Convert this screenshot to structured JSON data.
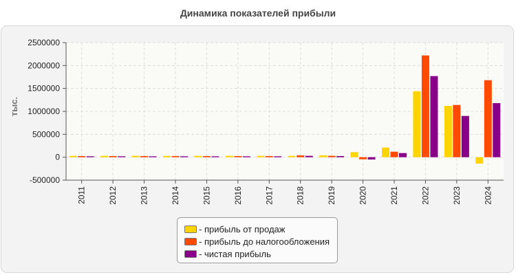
{
  "chart_data": {
    "type": "bar",
    "title": "Динамика показателей прибыли",
    "ylabel": "тыс.",
    "xlabel": "",
    "categories": [
      "2011",
      "2012",
      "2013",
      "2014",
      "2015",
      "2016",
      "2017",
      "2018",
      "2019",
      "2020",
      "2021",
      "2022",
      "2023",
      "2024"
    ],
    "ylim": [
      -500000,
      2500000
    ],
    "yticks": [
      2500000,
      2000000,
      1500000,
      1000000,
      500000,
      0,
      -500000
    ],
    "ytick_labels": [
      "2500000",
      "2000000",
      "1500000",
      "1000000",
      "500000",
      "0",
      "-500000"
    ],
    "grid": true,
    "legend_position": "bottom",
    "series": [
      {
        "name": "- прибыль от продаж",
        "color": "#ffd400",
        "values": [
          30000,
          30000,
          30000,
          30000,
          30000,
          30000,
          30000,
          30000,
          40000,
          110000,
          210000,
          1440000,
          1120000,
          -140000
        ]
      },
      {
        "name": "- прибыль до налогообложения",
        "color": "#ff4a00",
        "values": [
          25000,
          25000,
          25000,
          25000,
          25000,
          25000,
          25000,
          40000,
          30000,
          -45000,
          120000,
          2220000,
          1140000,
          1680000
        ]
      },
      {
        "name": "- чистая прибыль",
        "color": "#880088",
        "values": [
          20000,
          20000,
          20000,
          20000,
          20000,
          20000,
          20000,
          30000,
          25000,
          -50000,
          90000,
          1770000,
          900000,
          1180000
        ]
      }
    ]
  }
}
